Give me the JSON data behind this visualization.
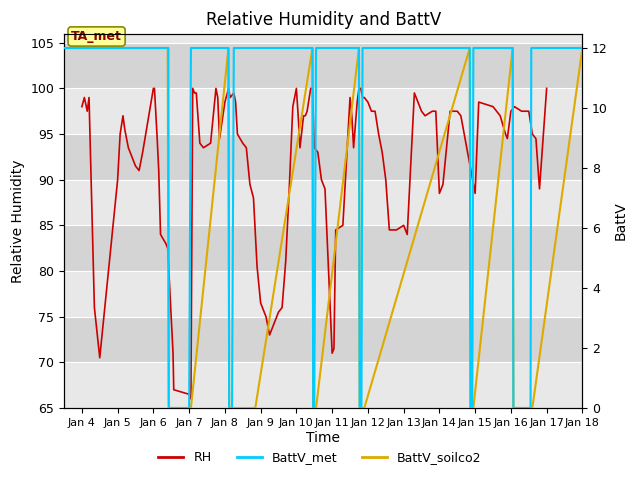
{
  "title": "Relative Humidity and BattV",
  "xlabel": "Time",
  "ylabel_left": "Relative Humidity",
  "ylabel_right": "BattV",
  "xlim_days": [
    3.5,
    18.0
  ],
  "ylim_left": [
    65,
    106
  ],
  "ylim_right": [
    0,
    12.48
  ],
  "bg_color_light": "#e8e8e8",
  "bg_color_dark": "#d4d4d4",
  "annotation_text": "TA_met",
  "annotation_bg": "#ffff99",
  "annotation_border": "#888800",
  "annotation_text_color": "#8B0000",
  "xtick_labels": [
    "Jan 4",
    "Jan 5",
    "Jan 6",
    "Jan 7",
    "Jan 8",
    "Jan 9",
    "Jan 10",
    "Jan 11",
    "Jan 12",
    "Jan 13",
    "Jan 14",
    "Jan 15",
    "Jan 16",
    "Jan 17",
    "Jan 18"
  ],
  "xtick_days": [
    4,
    5,
    6,
    7,
    8,
    9,
    10,
    11,
    12,
    13,
    14,
    15,
    16,
    17,
    18
  ],
  "ytick_left": [
    65,
    70,
    75,
    80,
    85,
    90,
    95,
    100,
    105
  ],
  "ytick_right": [
    0,
    2,
    4,
    6,
    8,
    10,
    12
  ],
  "rh_color": "#cc0000",
  "battv_met_color": "#00ccff",
  "battv_soilco2_color": "#ddaa00",
  "legend_labels": [
    "RH",
    "BattV_met",
    "BattV_soilco2"
  ],
  "rh_data": [
    [
      4.0,
      98.0
    ],
    [
      4.07,
      99.0
    ],
    [
      4.15,
      97.5
    ],
    [
      4.2,
      99.0
    ],
    [
      4.35,
      76.0
    ],
    [
      4.5,
      70.5
    ],
    [
      5.0,
      90.0
    ],
    [
      5.07,
      95.0
    ],
    [
      5.15,
      97.0
    ],
    [
      5.2,
      95.5
    ],
    [
      5.3,
      93.5
    ],
    [
      5.4,
      92.5
    ],
    [
      5.5,
      91.5
    ],
    [
      5.6,
      91.0
    ],
    [
      5.7,
      93.0
    ],
    [
      5.85,
      96.5
    ],
    [
      6.0,
      100.0
    ],
    [
      6.03,
      100.0
    ],
    [
      6.1,
      95.0
    ],
    [
      6.15,
      91.0
    ],
    [
      6.2,
      84.0
    ],
    [
      6.35,
      83.0
    ],
    [
      6.4,
      82.5
    ],
    [
      6.55,
      71.0
    ],
    [
      6.57,
      67.0
    ],
    [
      7.0,
      66.5
    ],
    [
      7.05,
      66.0
    ],
    [
      7.1,
      100.0
    ],
    [
      7.15,
      99.5
    ],
    [
      7.2,
      99.5
    ],
    [
      7.3,
      94.0
    ],
    [
      7.4,
      93.5
    ],
    [
      7.6,
      94.0
    ],
    [
      7.7,
      98.0
    ],
    [
      7.75,
      100.0
    ],
    [
      7.8,
      99.0
    ],
    [
      7.85,
      94.5
    ],
    [
      8.0,
      98.5
    ],
    [
      8.07,
      99.5
    ],
    [
      8.1,
      100.0
    ],
    [
      8.15,
      99.0
    ],
    [
      8.25,
      99.5
    ],
    [
      8.3,
      98.5
    ],
    [
      8.35,
      95.0
    ],
    [
      8.5,
      94.0
    ],
    [
      8.6,
      93.5
    ],
    [
      8.7,
      89.5
    ],
    [
      8.8,
      88.0
    ],
    [
      8.9,
      80.5
    ],
    [
      9.0,
      76.5
    ],
    [
      9.1,
      75.5
    ],
    [
      9.15,
      75.0
    ],
    [
      9.25,
      73.0
    ],
    [
      9.3,
      73.5
    ],
    [
      9.5,
      75.5
    ],
    [
      9.6,
      76.0
    ],
    [
      9.7,
      81.0
    ],
    [
      9.8,
      89.0
    ],
    [
      9.9,
      98.0
    ],
    [
      10.0,
      100.0
    ],
    [
      10.05,
      97.0
    ],
    [
      10.1,
      93.5
    ],
    [
      10.2,
      97.0
    ],
    [
      10.25,
      97.0
    ],
    [
      10.3,
      97.5
    ],
    [
      10.4,
      100.0
    ],
    [
      10.45,
      100.0
    ],
    [
      10.5,
      93.5
    ],
    [
      10.6,
      93.0
    ],
    [
      10.7,
      90.0
    ],
    [
      10.8,
      89.0
    ],
    [
      11.0,
      71.0
    ],
    [
      11.05,
      71.5
    ],
    [
      11.1,
      84.5
    ],
    [
      11.3,
      85.0
    ],
    [
      11.5,
      99.0
    ],
    [
      11.55,
      97.0
    ],
    [
      11.6,
      93.5
    ],
    [
      11.7,
      98.5
    ],
    [
      11.75,
      100.0
    ],
    [
      11.8,
      100.0
    ],
    [
      11.85,
      99.0
    ],
    [
      11.9,
      99.0
    ],
    [
      12.0,
      98.5
    ],
    [
      12.1,
      97.5
    ],
    [
      12.2,
      97.5
    ],
    [
      12.3,
      95.0
    ],
    [
      12.4,
      93.0
    ],
    [
      12.5,
      90.0
    ],
    [
      12.6,
      84.5
    ],
    [
      12.8,
      84.5
    ],
    [
      13.0,
      85.0
    ],
    [
      13.05,
      84.5
    ],
    [
      13.1,
      84.0
    ],
    [
      13.3,
      99.5
    ],
    [
      13.35,
      99.0
    ],
    [
      13.5,
      97.5
    ],
    [
      13.6,
      97.0
    ],
    [
      13.8,
      97.5
    ],
    [
      13.9,
      97.5
    ],
    [
      14.0,
      88.5
    ],
    [
      14.1,
      89.5
    ],
    [
      14.3,
      97.5
    ],
    [
      14.5,
      97.5
    ],
    [
      14.6,
      97.0
    ],
    [
      15.0,
      88.5
    ],
    [
      15.1,
      98.5
    ],
    [
      15.5,
      98.0
    ],
    [
      15.7,
      97.0
    ],
    [
      15.85,
      95.0
    ],
    [
      15.9,
      94.5
    ],
    [
      16.0,
      97.5
    ],
    [
      16.1,
      98.0
    ],
    [
      16.3,
      97.5
    ],
    [
      16.5,
      97.5
    ],
    [
      16.6,
      95.0
    ],
    [
      16.7,
      94.5
    ],
    [
      16.8,
      89.0
    ],
    [
      17.0,
      100.0
    ]
  ],
  "battv_met_data": [
    [
      3.5,
      12.0
    ],
    [
      6.4,
      12.0
    ],
    [
      6.42,
      12.0
    ],
    [
      6.43,
      0.0
    ],
    [
      7.0,
      0.0
    ],
    [
      7.05,
      12.0
    ],
    [
      8.1,
      12.0
    ],
    [
      8.12,
      0.0
    ],
    [
      8.2,
      0.0
    ],
    [
      8.25,
      12.0
    ],
    [
      10.45,
      12.0
    ],
    [
      10.47,
      0.0
    ],
    [
      10.5,
      0.0
    ],
    [
      10.55,
      12.0
    ],
    [
      11.75,
      12.0
    ],
    [
      11.77,
      0.0
    ],
    [
      11.82,
      0.0
    ],
    [
      11.85,
      12.0
    ],
    [
      14.85,
      12.0
    ],
    [
      14.87,
      0.0
    ],
    [
      14.92,
      0.0
    ],
    [
      14.95,
      12.0
    ],
    [
      16.05,
      12.0
    ],
    [
      16.07,
      0.0
    ],
    [
      16.55,
      0.0
    ],
    [
      16.57,
      12.0
    ],
    [
      18.0,
      12.0
    ]
  ],
  "battv_soilco2_data": [
    [
      3.5,
      12.0
    ],
    [
      6.4,
      12.0
    ],
    [
      6.43,
      0.0
    ],
    [
      7.05,
      0.0
    ],
    [
      8.1,
      12.0
    ],
    [
      8.12,
      0.0
    ],
    [
      8.85,
      0.0
    ],
    [
      10.45,
      12.0
    ],
    [
      10.47,
      0.0
    ],
    [
      10.55,
      0.0
    ],
    [
      11.75,
      12.0
    ],
    [
      11.77,
      0.0
    ],
    [
      11.9,
      0.0
    ],
    [
      14.85,
      12.0
    ],
    [
      14.87,
      0.0
    ],
    [
      14.95,
      0.0
    ],
    [
      16.05,
      12.0
    ],
    [
      16.07,
      0.0
    ],
    [
      16.6,
      0.0
    ],
    [
      18.0,
      12.0
    ]
  ]
}
